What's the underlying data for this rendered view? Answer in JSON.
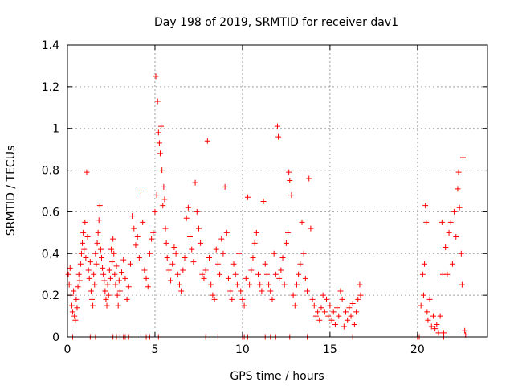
{
  "chart_data": {
    "type": "scatter",
    "title": "Day 198 of 2019, SRMTID for receiver dav1",
    "xlabel": "GPS time / hours",
    "ylabel": "SRMTID / TECUs",
    "xlim": [
      0,
      24
    ],
    "ylim": [
      0,
      1.4
    ],
    "xticks": [
      0,
      5,
      10,
      15,
      20
    ],
    "xtick_labels": [
      "0",
      "5",
      "10",
      "15",
      "20"
    ],
    "yticks": [
      0,
      0.2,
      0.4,
      0.6,
      0.8,
      1.0,
      1.2,
      1.4
    ],
    "ytick_labels": [
      "0",
      "0.2",
      "0.4",
      "0.6",
      "0.8",
      "1",
      "1.2",
      "1.4"
    ],
    "grid": true,
    "marker": "+",
    "colors": {
      "points": "#ff0000",
      "grid": "#a0a0a0",
      "axis": "#000000"
    },
    "series": [
      {
        "name": "dav1",
        "points": [
          [
            0.05,
            0.3
          ],
          [
            0.1,
            0.25
          ],
          [
            0.15,
            0.33
          ],
          [
            0.2,
            0.2
          ],
          [
            0.25,
            0.15
          ],
          [
            0.3,
            0.12
          ],
          [
            0.35,
            0.22
          ],
          [
            0.4,
            0.1
          ],
          [
            0.45,
            0.08
          ],
          [
            0.5,
            0.18
          ],
          [
            0.55,
            0.14
          ],
          [
            0.6,
            0.24
          ],
          [
            0.65,
            0.3
          ],
          [
            0.7,
            0.27
          ],
          [
            0.75,
            0.35
          ],
          [
            0.8,
            0.4
          ],
          [
            0.85,
            0.45
          ],
          [
            0.9,
            0.5
          ],
          [
            0.95,
            0.42
          ],
          [
            1.0,
            0.55
          ],
          [
            1.05,
            0.38
          ],
          [
            1.1,
            0.79
          ],
          [
            1.15,
            0.48
          ],
          [
            1.2,
            0.32
          ],
          [
            1.25,
            0.28
          ],
          [
            1.3,
            0.36
          ],
          [
            1.35,
            0.22
          ],
          [
            1.4,
            0.18
          ],
          [
            1.45,
            0.15
          ],
          [
            1.5,
            0.3
          ],
          [
            1.55,
            0.25
          ],
          [
            1.6,
            0.4
          ],
          [
            1.65,
            0.35
          ],
          [
            1.7,
            0.45
          ],
          [
            1.75,
            0.5
          ],
          [
            1.8,
            0.56
          ],
          [
            1.85,
            0.63
          ],
          [
            1.9,
            0.42
          ],
          [
            1.95,
            0.38
          ],
          [
            2.0,
            0.33
          ],
          [
            2.05,
            0.3
          ],
          [
            2.1,
            0.27
          ],
          [
            2.15,
            0.22
          ],
          [
            2.2,
            0.18
          ],
          [
            2.25,
            0.15
          ],
          [
            2.3,
            0.25
          ],
          [
            2.35,
            0.2
          ],
          [
            2.4,
            0.32
          ],
          [
            2.45,
            0.28
          ],
          [
            2.5,
            0.42
          ],
          [
            2.55,
            0.36
          ],
          [
            2.6,
            0.47
          ],
          [
            2.65,
            0.4
          ],
          [
            2.7,
            0.3
          ],
          [
            2.75,
            0.25
          ],
          [
            2.8,
            0.34
          ],
          [
            2.85,
            0.2
          ],
          [
            2.9,
            0.15
          ],
          [
            2.95,
            0.27
          ],
          [
            3.0,
            0.22
          ],
          [
            3.1,
            0.31
          ],
          [
            3.2,
            0.37
          ],
          [
            3.3,
            0.28
          ],
          [
            3.4,
            0.18
          ],
          [
            3.5,
            0.24
          ],
          [
            3.6,
            0.35
          ],
          [
            3.7,
            0.58
          ],
          [
            3.8,
            0.52
          ],
          [
            3.9,
            0.44
          ],
          [
            4.0,
            0.48
          ],
          [
            4.1,
            0.38
          ],
          [
            4.2,
            0.7
          ],
          [
            4.3,
            0.55
          ],
          [
            4.4,
            0.32
          ],
          [
            4.5,
            0.28
          ],
          [
            4.6,
            0.24
          ],
          [
            4.7,
            0.4
          ],
          [
            4.8,
            0.47
          ],
          [
            4.9,
            0.5
          ],
          [
            5.0,
            0.6
          ],
          [
            5.05,
            1.25
          ],
          [
            5.1,
            0.68
          ],
          [
            5.15,
            1.13
          ],
          [
            5.2,
            0.98
          ],
          [
            5.25,
            0.93
          ],
          [
            5.3,
            0.88
          ],
          [
            5.35,
            1.01
          ],
          [
            5.4,
            0.8
          ],
          [
            5.45,
            0.63
          ],
          [
            5.5,
            0.72
          ],
          [
            5.55,
            0.66
          ],
          [
            5.6,
            0.52
          ],
          [
            5.65,
            0.45
          ],
          [
            5.7,
            0.38
          ],
          [
            5.8,
            0.32
          ],
          [
            5.9,
            0.27
          ],
          [
            6.0,
            0.35
          ],
          [
            6.1,
            0.43
          ],
          [
            6.2,
            0.4
          ],
          [
            6.3,
            0.3
          ],
          [
            6.4,
            0.25
          ],
          [
            6.5,
            0.22
          ],
          [
            6.6,
            0.32
          ],
          [
            6.7,
            0.38
          ],
          [
            6.8,
            0.57
          ],
          [
            6.9,
            0.62
          ],
          [
            7.0,
            0.48
          ],
          [
            7.1,
            0.42
          ],
          [
            7.2,
            0.36
          ],
          [
            7.3,
            0.74
          ],
          [
            7.4,
            0.6
          ],
          [
            7.5,
            0.52
          ],
          [
            7.6,
            0.45
          ],
          [
            7.7,
            0.3
          ],
          [
            7.8,
            0.28
          ],
          [
            7.9,
            0.32
          ],
          [
            8.0,
            0.94
          ],
          [
            8.1,
            0.38
          ],
          [
            8.2,
            0.25
          ],
          [
            8.3,
            0.2
          ],
          [
            8.4,
            0.18
          ],
          [
            8.5,
            0.42
          ],
          [
            8.6,
            0.35
          ],
          [
            8.7,
            0.3
          ],
          [
            8.8,
            0.47
          ],
          [
            8.9,
            0.4
          ],
          [
            9.0,
            0.72
          ],
          [
            9.1,
            0.5
          ],
          [
            9.2,
            0.28
          ],
          [
            9.3,
            0.22
          ],
          [
            9.4,
            0.18
          ],
          [
            9.5,
            0.35
          ],
          [
            9.6,
            0.3
          ],
          [
            9.7,
            0.25
          ],
          [
            9.8,
            0.4
          ],
          [
            9.9,
            0.22
          ],
          [
            10.0,
            0.18
          ],
          [
            10.1,
            0.15
          ],
          [
            10.2,
            0.28
          ],
          [
            10.3,
            0.67
          ],
          [
            10.4,
            0.25
          ],
          [
            10.5,
            0.32
          ],
          [
            10.6,
            0.38
          ],
          [
            10.7,
            0.45
          ],
          [
            10.8,
            0.5
          ],
          [
            10.9,
            0.3
          ],
          [
            11.0,
            0.25
          ],
          [
            11.1,
            0.22
          ],
          [
            11.2,
            0.65
          ],
          [
            11.3,
            0.35
          ],
          [
            11.4,
            0.3
          ],
          [
            11.5,
            0.25
          ],
          [
            11.6,
            0.22
          ],
          [
            11.7,
            0.18
          ],
          [
            11.8,
            0.4
          ],
          [
            11.9,
            0.3
          ],
          [
            12.0,
            1.01
          ],
          [
            12.05,
            0.96
          ],
          [
            12.1,
            0.28
          ],
          [
            12.2,
            0.32
          ],
          [
            12.3,
            0.38
          ],
          [
            12.4,
            0.25
          ],
          [
            12.5,
            0.45
          ],
          [
            12.6,
            0.5
          ],
          [
            12.65,
            0.79
          ],
          [
            12.7,
            0.75
          ],
          [
            12.8,
            0.68
          ],
          [
            12.9,
            0.2
          ],
          [
            13.0,
            0.15
          ],
          [
            13.1,
            0.25
          ],
          [
            13.2,
            0.3
          ],
          [
            13.3,
            0.35
          ],
          [
            13.4,
            0.55
          ],
          [
            13.5,
            0.4
          ],
          [
            13.6,
            0.28
          ],
          [
            13.7,
            0.22
          ],
          [
            13.8,
            0.76
          ],
          [
            13.9,
            0.52
          ],
          [
            14.0,
            0.18
          ],
          [
            14.1,
            0.15
          ],
          [
            14.2,
            0.1
          ],
          [
            14.3,
            0.12
          ],
          [
            14.4,
            0.08
          ],
          [
            14.5,
            0.14
          ],
          [
            14.6,
            0.2
          ],
          [
            14.7,
            0.12
          ],
          [
            14.8,
            0.18
          ],
          [
            14.9,
            0.1
          ],
          [
            15.0,
            0.15
          ],
          [
            15.1,
            0.08
          ],
          [
            15.2,
            0.12
          ],
          [
            15.3,
            0.06
          ],
          [
            15.4,
            0.14
          ],
          [
            15.5,
            0.1
          ],
          [
            15.6,
            0.22
          ],
          [
            15.7,
            0.18
          ],
          [
            15.8,
            0.05
          ],
          [
            15.9,
            0.12
          ],
          [
            16.0,
            0.08
          ],
          [
            16.1,
            0.14
          ],
          [
            16.2,
            0.1
          ],
          [
            16.3,
            0.16
          ],
          [
            16.4,
            0.06
          ],
          [
            16.5,
            0.12
          ],
          [
            16.6,
            0.18
          ],
          [
            16.7,
            0.25
          ],
          [
            16.75,
            0.2
          ],
          [
            20.2,
            0.15
          ],
          [
            20.3,
            0.3
          ],
          [
            20.35,
            0.2
          ],
          [
            20.4,
            0.35
          ],
          [
            20.45,
            0.63
          ],
          [
            20.5,
            0.55
          ],
          [
            20.55,
            0.12
          ],
          [
            20.6,
            0.08
          ],
          [
            20.7,
            0.18
          ],
          [
            20.8,
            0.05
          ],
          [
            20.9,
            0.1
          ],
          [
            21.0,
            0.04
          ],
          [
            21.1,
            0.06
          ],
          [
            21.2,
            0.02
          ],
          [
            21.3,
            0.1
          ],
          [
            21.4,
            0.55
          ],
          [
            21.45,
            0.3
          ],
          [
            21.5,
            0.02
          ],
          [
            21.6,
            0.43
          ],
          [
            21.7,
            0.3
          ],
          [
            21.8,
            0.5
          ],
          [
            21.9,
            0.55
          ],
          [
            22.0,
            0.35
          ],
          [
            22.1,
            0.6
          ],
          [
            22.2,
            0.48
          ],
          [
            22.3,
            0.71
          ],
          [
            22.35,
            0.79
          ],
          [
            22.4,
            0.62
          ],
          [
            22.5,
            0.4
          ],
          [
            22.55,
            0.25
          ],
          [
            22.6,
            0.86
          ],
          [
            22.7,
            0.03
          ],
          [
            22.75,
            0.01
          ],
          [
            0.3,
            0.0
          ],
          [
            1.3,
            0.0
          ],
          [
            1.6,
            0.0
          ],
          [
            2.6,
            0.0
          ],
          [
            2.8,
            0.0
          ],
          [
            3.0,
            0.0
          ],
          [
            3.2,
            0.0
          ],
          [
            3.3,
            0.0
          ],
          [
            3.5,
            0.0
          ],
          [
            4.2,
            0.0
          ],
          [
            4.5,
            0.0
          ],
          [
            4.7,
            0.0
          ],
          [
            5.2,
            0.0
          ],
          [
            7.9,
            0.0
          ],
          [
            8.6,
            0.0
          ],
          [
            10.0,
            0.0
          ],
          [
            10.1,
            0.0
          ],
          [
            10.3,
            0.0
          ],
          [
            11.3,
            0.0
          ],
          [
            11.6,
            0.0
          ],
          [
            11.9,
            0.0
          ],
          [
            12.7,
            0.0
          ],
          [
            13.7,
            0.0
          ],
          [
            16.3,
            0.0
          ],
          [
            20.0,
            0.0
          ],
          [
            20.1,
            0.0
          ],
          [
            21.5,
            0.0
          ]
        ]
      }
    ]
  }
}
